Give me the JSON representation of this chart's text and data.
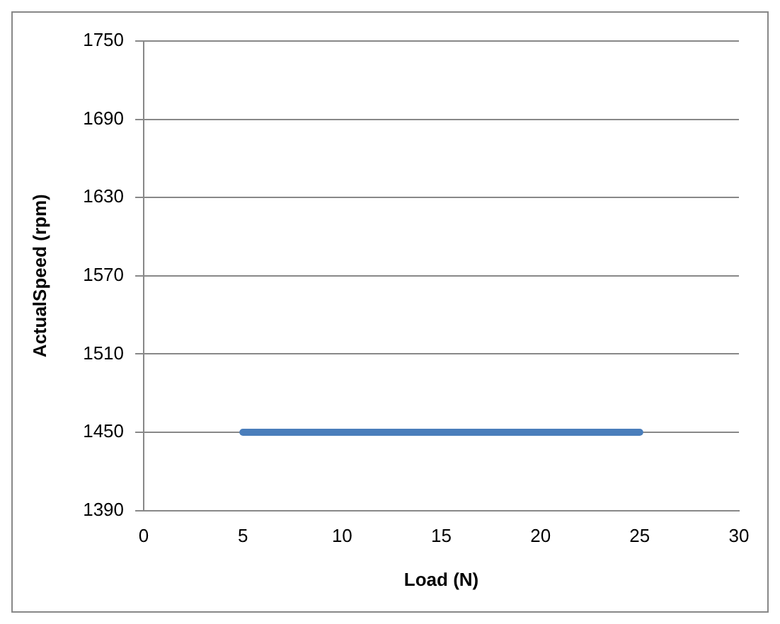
{
  "chart_data": {
    "type": "line",
    "xlabel": "Load (N)",
    "ylabel": "ActualSpeed (rpm)",
    "x": [
      5,
      25
    ],
    "series": [
      {
        "color": "#4a7ebb",
        "values": [
          1450,
          1450
        ]
      }
    ],
    "xlim": [
      0,
      30
    ],
    "xticks": [
      0,
      5,
      10,
      15,
      20,
      25,
      30
    ],
    "ylim": [
      1390,
      1750
    ],
    "yticks": [
      1390,
      1450,
      1510,
      1570,
      1630,
      1690,
      1750
    ],
    "grid": "y",
    "legend": false,
    "marker": "none",
    "line_style": "solid"
  }
}
